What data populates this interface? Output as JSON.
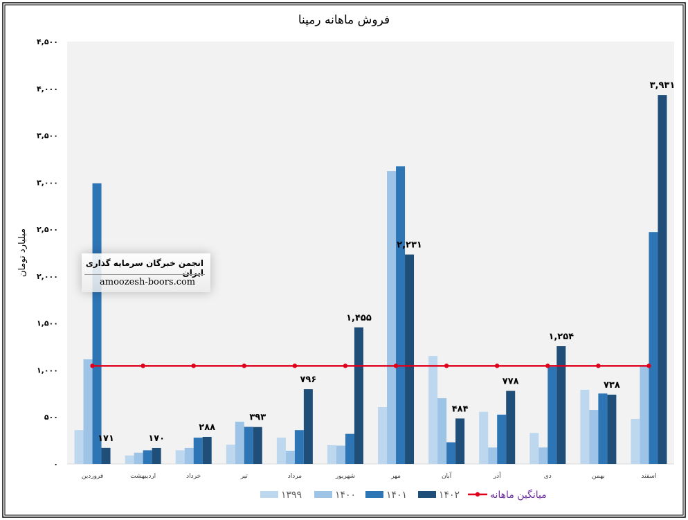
{
  "chart_data": {
    "type": "bar",
    "title": "فروش ماهانه رمپنا",
    "ylabel": "میلیارد تومان",
    "xlabel": "",
    "ylim": [
      0,
      4500
    ],
    "yticks": [
      0,
      500,
      1000,
      1500,
      2000,
      2500,
      3000,
      3500,
      4000,
      4500
    ],
    "ytick_labels": [
      "۰",
      "۵۰۰",
      "۱,۰۰۰",
      "۱,۵۰۰",
      "۲,۰۰۰",
      "۲,۵۰۰",
      "۳,۰۰۰",
      "۳,۵۰۰",
      "۴,۰۰۰",
      "۴,۵۰۰"
    ],
    "grid": false,
    "legend_position": "bottom",
    "categories": [
      "فروردین",
      "اردیبهشت",
      "خرداد",
      "تیر",
      "مرداد",
      "شهریور",
      "مهر",
      "آبان",
      "آذر",
      "دی",
      "بهمن",
      "اسفند"
    ],
    "series": [
      {
        "name": "۱۳۹۹",
        "color": "#bdd7ee",
        "values": [
          360,
          90,
          145,
          205,
          280,
          200,
          605,
          1150,
          555,
          330,
          790,
          480
        ]
      },
      {
        "name": "۱۴۰۰",
        "color": "#9dc3e6",
        "values": [
          1115,
          120,
          170,
          450,
          140,
          195,
          3120,
          700,
          175,
          175,
          575,
          1040
        ]
      },
      {
        "name": "۱۴۰۱",
        "color": "#2e75b6",
        "values": [
          2990,
          145,
          280,
          395,
          360,
          320,
          3170,
          230,
          525,
          1035,
          750,
          2470
        ]
      },
      {
        "name": "۱۴۰۲",
        "color": "#1f4e79",
        "values": [
          171,
          170,
          288,
          393,
          796,
          1455,
          2231,
          484,
          778,
          1254,
          738,
          3931
        ],
        "data_labels": [
          "۱۷۱",
          "۱۷۰",
          "۲۸۸",
          "۳۹۳",
          "۷۹۶",
          "۱,۴۵۵",
          "۲,۲۳۱",
          "۴۸۴",
          "۷۷۸",
          "۱,۲۵۴",
          "۷۳۸",
          "۳,۹۳۱"
        ]
      }
    ],
    "average_line": {
      "name": "میانگین ماهانه",
      "color": "#e0001b",
      "value": 1045
    }
  },
  "watermark": {
    "title": "انجمن خبرگان سرمایه گذاری ایران",
    "site": "amoozesh-boors.com"
  }
}
